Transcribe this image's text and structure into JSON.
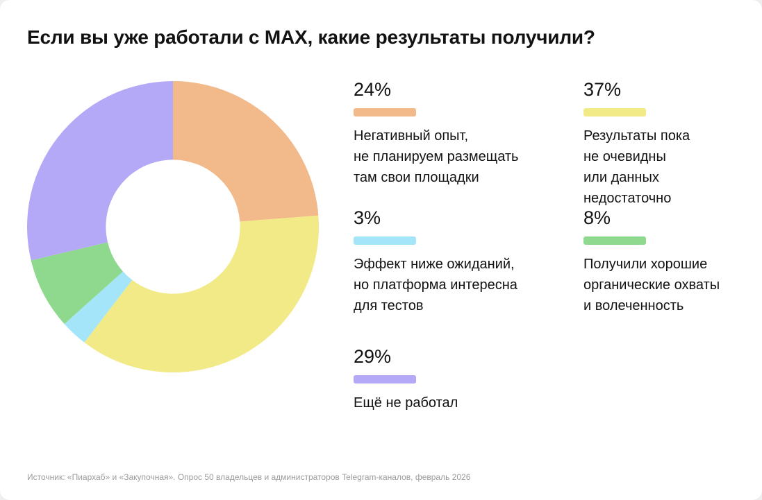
{
  "title": "Если вы уже работали с MAX, какие результаты получили?",
  "footer": "Источник: «Пиархаб» и «Закупочная». Опрос 50 владельцев и администраторов Telegram-каналов, февраль 2026",
  "chart_data": {
    "type": "pie",
    "donut": true,
    "title": "Если вы уже работали с MAX, какие результаты получили?",
    "start_angle_deg": 0,
    "direction": "clockwise",
    "inner_radius_ratio": 0.46,
    "segments": [
      {
        "label": "Негативный опыт, не планируем размещать там свои площадки",
        "value": 24,
        "color": "#F2B98A"
      },
      {
        "label": "Результаты пока не очевидны или данных недостаточно",
        "value": 37,
        "color": "#F2E987"
      },
      {
        "label": "Эффект ниже ожиданий, но платформа интересна для тестов",
        "value": 3,
        "color": "#A5E5F9"
      },
      {
        "label": "Получили хорошие органические охваты и волеченность",
        "value": 8,
        "color": "#8FD98F"
      },
      {
        "label": "Ещё не работал",
        "value": 29,
        "color": "#B3A9F6"
      }
    ]
  },
  "legend": {
    "left_column": [
      {
        "percent": "24%",
        "color": "#F2B98A",
        "label": "Негативный опыт,\nне планируем размещать\nтам свои площадки"
      },
      {
        "percent": "3%",
        "color": "#A5E5F9",
        "label": "Эффект ниже ожиданий,\nно платформа интересна\nдля тестов"
      },
      {
        "percent": "29%",
        "color": "#B3A9F6",
        "label": "Ещё не работал"
      }
    ],
    "right_column": [
      {
        "percent": "37%",
        "color": "#F2E987",
        "label": "Результаты пока\nне очевидны\nили данных\nнедостаточно"
      },
      {
        "percent": "8%",
        "color": "#8FD98F",
        "label": "Получили хорошие\nорганические охваты\nи волеченность"
      }
    ]
  }
}
